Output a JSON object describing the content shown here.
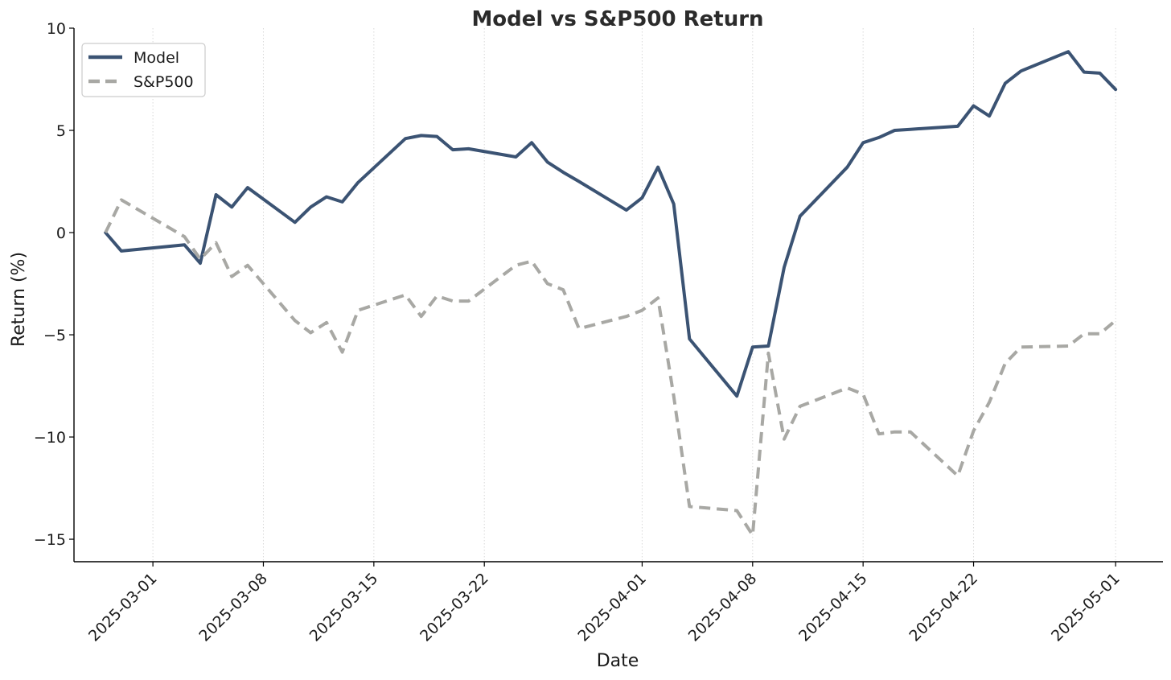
{
  "chart_data": {
    "type": "line",
    "title": "Model vs S&P500 Return",
    "xlabel": "Date",
    "ylabel": "Return (%)",
    "ylim": [
      -16.1,
      10
    ],
    "xlim": [
      "2025-02-24",
      "2025-05-04"
    ],
    "x_ticks": [
      "2025-03-01",
      "2025-03-08",
      "2025-03-15",
      "2025-03-22",
      "2025-04-01",
      "2025-04-08",
      "2025-04-15",
      "2025-04-22",
      "2025-05-01"
    ],
    "y_ticks": [
      10,
      5,
      0,
      -5,
      -10,
      -15
    ],
    "grid": "vertical dotted at x ticks",
    "legend_position": "top-left",
    "series": [
      {
        "name": "Model",
        "color": "#3b5373",
        "style": "solid",
        "points": [
          [
            "2025-02-26",
            0.0
          ],
          [
            "2025-02-27",
            -0.9
          ],
          [
            "2025-03-03",
            -0.6
          ],
          [
            "2025-03-04",
            -1.5
          ],
          [
            "2025-03-05",
            1.85
          ],
          [
            "2025-03-06",
            1.25
          ],
          [
            "2025-03-07",
            2.2
          ],
          [
            "2025-03-10",
            0.5
          ],
          [
            "2025-03-11",
            1.25
          ],
          [
            "2025-03-12",
            1.75
          ],
          [
            "2025-03-13",
            1.5
          ],
          [
            "2025-03-14",
            2.45
          ],
          [
            "2025-03-17",
            4.6
          ],
          [
            "2025-03-18",
            4.75
          ],
          [
            "2025-03-19",
            4.7
          ],
          [
            "2025-03-20",
            4.05
          ],
          [
            "2025-03-21",
            4.1
          ],
          [
            "2025-03-24",
            3.7
          ],
          [
            "2025-03-25",
            4.4
          ],
          [
            "2025-03-26",
            3.45
          ],
          [
            "2025-03-27",
            2.95
          ],
          [
            "2025-03-28",
            2.5
          ],
          [
            "2025-03-31",
            1.1
          ],
          [
            "2025-04-01",
            1.7
          ],
          [
            "2025-04-02",
            3.2
          ],
          [
            "2025-04-03",
            1.4
          ],
          [
            "2025-04-04",
            -5.2
          ],
          [
            "2025-04-07",
            -8.0
          ],
          [
            "2025-04-08",
            -5.6
          ],
          [
            "2025-04-09",
            -5.55
          ],
          [
            "2025-04-10",
            -1.7
          ],
          [
            "2025-04-11",
            0.8
          ],
          [
            "2025-04-14",
            3.2
          ],
          [
            "2025-04-15",
            4.4
          ],
          [
            "2025-04-16",
            4.65
          ],
          [
            "2025-04-17",
            5.0
          ],
          [
            "2025-04-18",
            5.05
          ],
          [
            "2025-04-21",
            5.2
          ],
          [
            "2025-04-22",
            6.2
          ],
          [
            "2025-04-23",
            5.7
          ],
          [
            "2025-04-24",
            7.3
          ],
          [
            "2025-04-25",
            7.9
          ],
          [
            "2025-04-28",
            8.85
          ],
          [
            "2025-04-29",
            7.85
          ],
          [
            "2025-04-30",
            7.8
          ],
          [
            "2025-05-01",
            7.0
          ]
        ]
      },
      {
        "name": "S&P500",
        "color": "#a8a8a4",
        "style": "dashed",
        "points": [
          [
            "2025-02-26",
            0.0
          ],
          [
            "2025-02-27",
            1.6
          ],
          [
            "2025-03-03",
            -0.2
          ],
          [
            "2025-03-04",
            -1.3
          ],
          [
            "2025-03-05",
            -0.5
          ],
          [
            "2025-03-06",
            -2.15
          ],
          [
            "2025-03-07",
            -1.6
          ],
          [
            "2025-03-10",
            -4.3
          ],
          [
            "2025-03-11",
            -4.9
          ],
          [
            "2025-03-12",
            -4.4
          ],
          [
            "2025-03-13",
            -5.85
          ],
          [
            "2025-03-14",
            -3.8
          ],
          [
            "2025-03-17",
            -3.05
          ],
          [
            "2025-03-18",
            -4.1
          ],
          [
            "2025-03-19",
            -3.1
          ],
          [
            "2025-03-20",
            -3.35
          ],
          [
            "2025-03-21",
            -3.35
          ],
          [
            "2025-03-24",
            -1.6
          ],
          [
            "2025-03-25",
            -1.4
          ],
          [
            "2025-03-26",
            -2.5
          ],
          [
            "2025-03-27",
            -2.8
          ],
          [
            "2025-03-28",
            -4.7
          ],
          [
            "2025-03-31",
            -4.1
          ],
          [
            "2025-04-01",
            -3.8
          ],
          [
            "2025-04-02",
            -3.2
          ],
          [
            "2025-04-03",
            -8.0
          ],
          [
            "2025-04-04",
            -13.4
          ],
          [
            "2025-04-07",
            -13.6
          ],
          [
            "2025-04-08",
            -14.8
          ],
          [
            "2025-04-09",
            -5.9
          ],
          [
            "2025-04-10",
            -10.1
          ],
          [
            "2025-04-11",
            -8.5
          ],
          [
            "2025-04-14",
            -7.6
          ],
          [
            "2025-04-15",
            -7.9
          ],
          [
            "2025-04-16",
            -9.85
          ],
          [
            "2025-04-17",
            -9.75
          ],
          [
            "2025-04-18",
            -9.75
          ],
          [
            "2025-04-21",
            -11.9
          ],
          [
            "2025-04-22",
            -9.7
          ],
          [
            "2025-04-23",
            -8.3
          ],
          [
            "2025-04-24",
            -6.4
          ],
          [
            "2025-04-25",
            -5.6
          ],
          [
            "2025-04-28",
            -5.55
          ],
          [
            "2025-04-29",
            -4.95
          ],
          [
            "2025-04-30",
            -4.95
          ],
          [
            "2025-05-01",
            -4.3
          ]
        ]
      }
    ]
  }
}
